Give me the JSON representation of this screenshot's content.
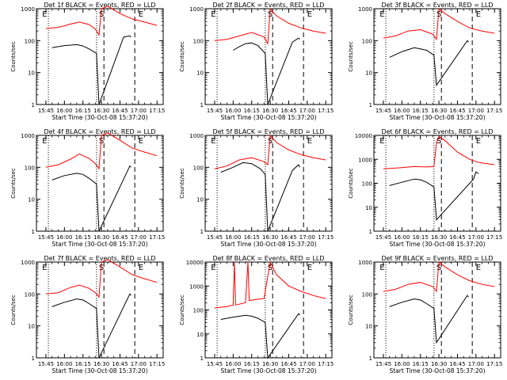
{
  "figure": {
    "xtick_labels": [
      "15:45",
      "16:00",
      "16:15",
      "16:30",
      "16:45",
      "17:00",
      "17:15"
    ],
    "xlabel": "Start Time (30-Oct-08 15:37:20)",
    "ylabel": "Counts/sec",
    "marker_labels": [
      "E",
      "S",
      "E"
    ],
    "colors": {
      "events": "#000000",
      "lld": "#ff0000"
    }
  },
  "chart_data": [
    {
      "type": "line",
      "title": "Det 1f BLACK = Events, RED = LLD",
      "xlabel": "Start Time (30-Oct-08 15:37:20)",
      "ylabel": "Counts/sec",
      "y_scale": "log",
      "ylim": [
        1,
        1000
      ],
      "y_ticks": [
        1,
        10,
        100,
        1000
      ],
      "y_tick_labels": [
        "1",
        "10",
        "100",
        "1000"
      ],
      "x_ticks": [
        "15:45",
        "16:00",
        "16:15",
        "16:30",
        "16:45",
        "17:00",
        "17:15"
      ],
      "series": [
        {
          "name": "Events",
          "color": "#000000",
          "x": [
            "15:50",
            "16:00",
            "16:10",
            "16:15",
            "16:20",
            "16:26",
            "16:28",
            "16:48",
            "16:53",
            "16:54"
          ],
          "y": [
            60,
            70,
            75,
            68,
            55,
            40,
            1,
            130,
            140,
            130
          ]
        },
        {
          "name": "LLD",
          "color": "#ff0000",
          "x": [
            "15:45",
            "15:55",
            "16:05",
            "16:12",
            "16:20",
            "16:25",
            "16:28",
            "16:30",
            "16:35",
            "16:45",
            "16:55",
            "17:05",
            "17:15"
          ],
          "y": [
            240,
            260,
            330,
            380,
            320,
            230,
            150,
            1000,
            1200,
            700,
            480,
            380,
            300
          ]
        }
      ]
    },
    {
      "type": "line",
      "title": "Det 2f BLACK = Events, RED = LLD",
      "xlabel": "Start Time (30-Oct-08 15:37:20)",
      "ylabel": "Counts/sec",
      "y_scale": "log",
      "ylim": [
        1,
        1000
      ],
      "y_ticks": [
        1,
        10,
        100,
        1000
      ],
      "y_tick_labels": [
        "1",
        "10",
        "100",
        "1000"
      ],
      "x_ticks": [
        "15:45",
        "16:00",
        "16:15",
        "16:30",
        "16:45",
        "17:00",
        "17:15"
      ],
      "series": [
        {
          "name": "Events",
          "color": "#000000",
          "x": [
            "16:00",
            "16:05",
            "16:10",
            "16:15",
            "16:20",
            "16:26",
            "16:28",
            "16:48",
            "16:53",
            "16:54"
          ],
          "y": [
            50,
            65,
            80,
            85,
            70,
            40,
            1,
            90,
            120,
            110
          ]
        },
        {
          "name": "LLD",
          "color": "#ff0000",
          "x": [
            "15:45",
            "15:55",
            "16:05",
            "16:15",
            "16:25",
            "16:28",
            "16:30",
            "16:35",
            "16:45",
            "16:55",
            "17:05",
            "17:15"
          ],
          "y": [
            100,
            110,
            140,
            180,
            130,
            80,
            1000,
            600,
            350,
            250,
            200,
            170
          ]
        }
      ]
    },
    {
      "type": "line",
      "title": "Det 3f BLACK = Events, RED = LLD",
      "xlabel": "Start Time (30-Oct-08 15:37:20)",
      "ylabel": "Counts/sec",
      "y_scale": "log",
      "ylim": [
        1,
        1000
      ],
      "y_ticks": [
        1,
        10,
        100,
        1000
      ],
      "y_tick_labels": [
        "1",
        "10",
        "100",
        "1000"
      ],
      "x_ticks": [
        "15:45",
        "16:00",
        "16:15",
        "16:30",
        "16:45",
        "17:00",
        "17:15"
      ],
      "series": [
        {
          "name": "Events",
          "color": "#000000",
          "x": [
            "15:50",
            "16:00",
            "16:10",
            "16:15",
            "16:20",
            "16:26",
            "16:28",
            "16:53",
            "16:54"
          ],
          "y": [
            30,
            45,
            60,
            55,
            50,
            35,
            4,
            100,
            90
          ]
        },
        {
          "name": "LLD",
          "color": "#ff0000",
          "x": [
            "15:45",
            "15:55",
            "16:05",
            "16:15",
            "16:25",
            "16:28",
            "16:30",
            "16:35",
            "16:45",
            "16:55",
            "17:05",
            "17:15"
          ],
          "y": [
            120,
            140,
            200,
            220,
            160,
            110,
            1000,
            700,
            400,
            250,
            200,
            170
          ]
        }
      ]
    },
    {
      "type": "line",
      "title": "Det 4f BLACK = Events, RED = LLD",
      "xlabel": "Start Time (30-Oct-08 15:37:20)",
      "ylabel": "Counts/sec",
      "y_scale": "log",
      "ylim": [
        1,
        1000
      ],
      "y_ticks": [
        1,
        10,
        100,
        1000
      ],
      "y_tick_labels": [
        "1",
        "10",
        "100",
        "1000"
      ],
      "x_ticks": [
        "15:45",
        "16:00",
        "16:15",
        "16:30",
        "16:45",
        "17:00",
        "17:15"
      ],
      "series": [
        {
          "name": "Events",
          "color": "#000000",
          "x": [
            "15:50",
            "16:00",
            "16:10",
            "16:15",
            "16:20",
            "16:26",
            "16:28",
            "16:53",
            "16:54"
          ],
          "y": [
            40,
            55,
            65,
            60,
            45,
            30,
            1,
            110,
            100
          ]
        },
        {
          "name": "LLD",
          "color": "#ff0000",
          "x": [
            "15:45",
            "15:55",
            "16:05",
            "16:12",
            "16:20",
            "16:25",
            "16:28",
            "16:30",
            "16:35",
            "16:45",
            "16:55",
            "17:05",
            "17:15"
          ],
          "y": [
            100,
            120,
            180,
            260,
            190,
            130,
            90,
            1000,
            1200,
            700,
            400,
            300,
            230
          ]
        }
      ]
    },
    {
      "type": "line",
      "title": "Det 5f BLACK = Events, RED = LLD",
      "xlabel": "Start Time (30-Oct-08 15:37:20)",
      "ylabel": "Counts/sec",
      "y_scale": "log",
      "ylim": [
        1,
        1000
      ],
      "y_ticks": [
        1,
        10,
        100,
        1000
      ],
      "y_tick_labels": [
        "1",
        "10",
        "100",
        "1000"
      ],
      "x_ticks": [
        "15:45",
        "16:00",
        "16:15",
        "16:30",
        "16:45",
        "17:00",
        "17:15"
      ],
      "series": [
        {
          "name": "Events",
          "color": "#000000",
          "x": [
            "15:50",
            "16:00",
            "16:08",
            "16:15",
            "16:22",
            "16:26",
            "16:28",
            "16:48",
            "16:53",
            "16:54"
          ],
          "y": [
            70,
            100,
            140,
            130,
            90,
            60,
            1,
            80,
            120,
            100
          ]
        },
        {
          "name": "LLD",
          "color": "#ff0000",
          "x": [
            "15:45",
            "15:55",
            "16:05",
            "16:15",
            "16:25",
            "16:28",
            "16:30",
            "16:35",
            "16:45",
            "16:55",
            "17:05",
            "17:15"
          ],
          "y": [
            90,
            110,
            170,
            200,
            150,
            120,
            1000,
            600,
            350,
            250,
            200,
            170
          ]
        }
      ]
    },
    {
      "type": "line",
      "title": "Det 6f BLACK = Events, RED = LLD",
      "xlabel": "Start Time (30-Oct-08 15:37:20)",
      "ylabel": "Counts/sec",
      "y_scale": "log",
      "ylim": [
        1,
        10000
      ],
      "y_ticks": [
        1,
        10,
        100,
        1000,
        10000
      ],
      "y_tick_labels": [
        "1",
        "10",
        "100",
        "1000",
        "10000"
      ],
      "x_ticks": [
        "15:45",
        "16:00",
        "16:15",
        "16:30",
        "16:45",
        "17:00",
        "17:15"
      ],
      "series": [
        {
          "name": "Events",
          "color": "#000000",
          "x": [
            "15:50",
            "16:00",
            "16:10",
            "16:15",
            "16:20",
            "16:26",
            "16:28",
            "16:58",
            "17:00",
            "17:02"
          ],
          "y": [
            80,
            110,
            150,
            140,
            110,
            70,
            3,
            150,
            300,
            250
          ]
        },
        {
          "name": "LLD",
          "color": "#ff0000",
          "x": [
            "15:45",
            "16:00",
            "16:10",
            "16:20",
            "16:26",
            "16:28",
            "16:30",
            "16:35",
            "16:45",
            "16:55",
            "17:00",
            "17:05",
            "17:15"
          ],
          "y": [
            400,
            450,
            500,
            480,
            500,
            5000,
            9000,
            6000,
            2000,
            1000,
            800,
            700,
            600
          ]
        }
      ]
    },
    {
      "type": "line",
      "title": "Det 7f BLACK = Events, RED = LLD",
      "xlabel": "Start Time (30-Oct-08 15:37:20)",
      "ylabel": "Counts/sec",
      "y_scale": "log",
      "ylim": [
        1,
        1000
      ],
      "y_ticks": [
        1,
        10,
        100,
        1000
      ],
      "y_tick_labels": [
        "1",
        "10",
        "100",
        "1000"
      ],
      "x_ticks": [
        "15:45",
        "16:00",
        "16:15",
        "16:30",
        "16:45",
        "17:00",
        "17:15"
      ],
      "series": [
        {
          "name": "Events",
          "color": "#000000",
          "x": [
            "15:50",
            "16:00",
            "16:10",
            "16:15",
            "16:20",
            "16:26",
            "16:28",
            "16:53",
            "16:54"
          ],
          "y": [
            40,
            55,
            70,
            65,
            50,
            35,
            1,
            100,
            90
          ]
        },
        {
          "name": "LLD",
          "color": "#ff0000",
          "x": [
            "15:45",
            "15:55",
            "16:05",
            "16:12",
            "16:20",
            "16:25",
            "16:28",
            "16:30",
            "16:35",
            "16:45",
            "16:55",
            "17:05",
            "17:15"
          ],
          "y": [
            100,
            110,
            160,
            190,
            150,
            110,
            80,
            1000,
            1200,
            700,
            400,
            300,
            230
          ]
        }
      ]
    },
    {
      "type": "line",
      "title": "Det 8f BLACK = Events, RED = LLD",
      "xlabel": "Start Time (30-Oct-08 15:37:20)",
      "ylabel": "Counts/sec",
      "y_scale": "log",
      "ylim": [
        1,
        10000
      ],
      "y_ticks": [
        1,
        10,
        100,
        1000,
        10000
      ],
      "y_tick_labels": [
        "1",
        "10",
        "100",
        "1000",
        "10000"
      ],
      "x_ticks": [
        "15:45",
        "16:00",
        "16:15",
        "16:30",
        "16:45",
        "17:00",
        "17:15"
      ],
      "series": [
        {
          "name": "Events",
          "color": "#000000",
          "x": [
            "15:50",
            "16:00",
            "16:10",
            "16:15",
            "16:20",
            "16:26",
            "16:28",
            "16:53",
            "16:54"
          ],
          "y": [
            40,
            50,
            60,
            55,
            45,
            30,
            1,
            70,
            60
          ]
        },
        {
          "name": "LLD",
          "color": "#ff0000",
          "x": [
            "15:45",
            "15:55",
            "16:00",
            "16:01",
            "16:02",
            "16:10",
            "16:12",
            "16:13",
            "16:20",
            "16:25",
            "16:30",
            "16:35",
            "16:45",
            "16:55",
            "17:05",
            "17:15"
          ],
          "y": [
            120,
            140,
            160,
            10000,
            160,
            200,
            10000,
            250,
            280,
            300,
            10000,
            3000,
            1000,
            600,
            400,
            300
          ]
        }
      ]
    },
    {
      "type": "line",
      "title": "Det 9f BLACK = Events, RED = LLD",
      "xlabel": "Start Time (30-Oct-08 15:37:20)",
      "ylabel": "Counts/sec",
      "y_scale": "log",
      "ylim": [
        1,
        1000
      ],
      "y_ticks": [
        1,
        10,
        100,
        1000
      ],
      "y_tick_labels": [
        "1",
        "10",
        "100",
        "1000"
      ],
      "x_ticks": [
        "15:45",
        "16:00",
        "16:15",
        "16:30",
        "16:45",
        "17:00",
        "17:15"
      ],
      "series": [
        {
          "name": "Events",
          "color": "#000000",
          "x": [
            "15:50",
            "16:00",
            "16:10",
            "16:15",
            "16:20",
            "16:26",
            "16:28",
            "16:53",
            "16:54"
          ],
          "y": [
            40,
            55,
            70,
            65,
            50,
            35,
            3,
            90,
            80
          ]
        },
        {
          "name": "LLD",
          "color": "#ff0000",
          "x": [
            "15:45",
            "15:55",
            "16:05",
            "16:15",
            "16:25",
            "16:28",
            "16:30",
            "16:35",
            "16:45",
            "16:55",
            "17:05",
            "17:15"
          ],
          "y": [
            120,
            140,
            200,
            230,
            170,
            120,
            1000,
            700,
            400,
            260,
            200,
            170
          ]
        }
      ]
    }
  ]
}
